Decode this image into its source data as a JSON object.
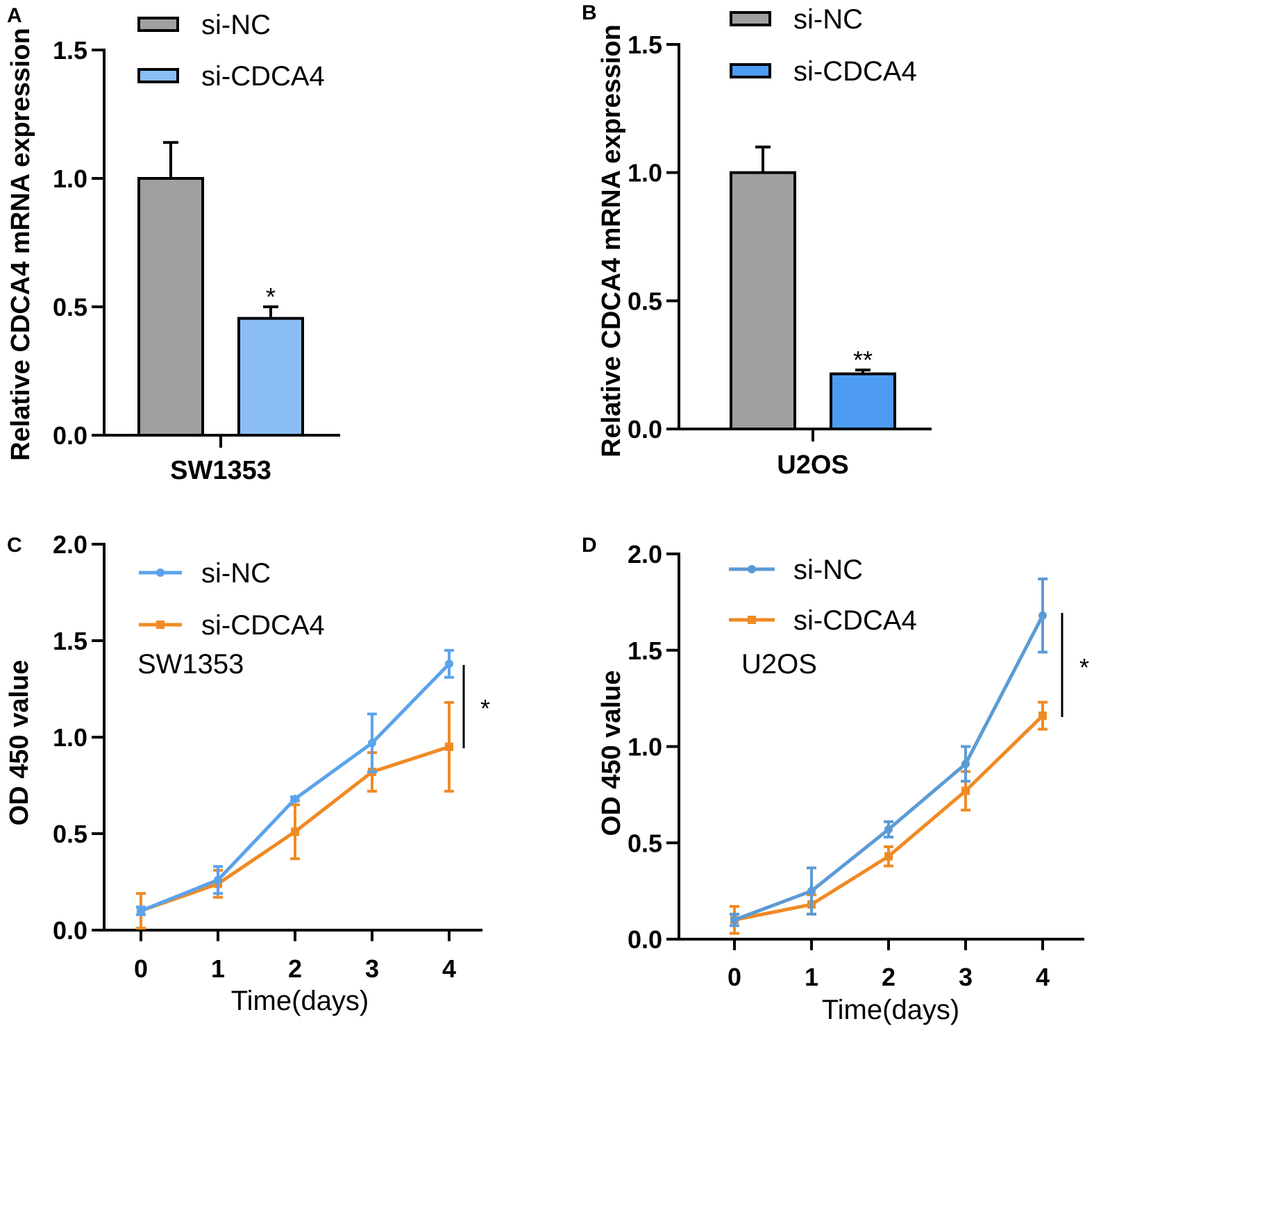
{
  "chart_data": [
    {
      "panel": "A",
      "type": "bar",
      "categories": [
        "SW1353"
      ],
      "series": [
        {
          "name": "si-NC",
          "color": "#a0a0a0",
          "values": [
            1.0
          ],
          "error": [
            0.14
          ]
        },
        {
          "name": "si-CDCA4",
          "color": "#8bbdf5",
          "values": [
            0.455
          ],
          "error": [
            0.045
          ]
        }
      ],
      "significance": [
        "*"
      ],
      "ylabel": "Relative CDCA4 mRNA expression",
      "xlabel": "SW1353",
      "ylim": [
        0,
        1.5
      ],
      "yticks": [
        "0.0",
        "0.5",
        "1.0",
        "1.5"
      ],
      "legend": {
        "placement": "top",
        "entries": [
          "si-NC",
          "si-CDCA4"
        ]
      }
    },
    {
      "panel": "B",
      "type": "bar",
      "categories": [
        "U2OS"
      ],
      "series": [
        {
          "name": "si-NC",
          "color": "#a0a0a0",
          "values": [
            1.0
          ],
          "error": [
            0.1
          ]
        },
        {
          "name": "si-CDCA4",
          "color": "#4d9cf2",
          "values": [
            0.215
          ],
          "error": [
            0.015
          ]
        }
      ],
      "significance": [
        "**"
      ],
      "ylabel": "Relative CDCA4 mRNA expression",
      "xlabel": "U2OS",
      "ylim": [
        0,
        1.5
      ],
      "yticks": [
        "0.0",
        "0.5",
        "1.0",
        "1.5"
      ],
      "legend": {
        "placement": "top",
        "entries": [
          "si-NC",
          "si-CDCA4"
        ]
      }
    },
    {
      "panel": "C",
      "type": "line",
      "x": [
        0,
        1,
        2,
        3,
        4
      ],
      "xticks": [
        "0",
        "1",
        "2",
        "3",
        "4"
      ],
      "series": [
        {
          "name": "si-NC",
          "color": "#5ba3ec",
          "marker": "circle",
          "values": [
            0.1,
            0.26,
            0.68,
            0.97,
            1.38
          ],
          "error": [
            0.02,
            0.07,
            0.01,
            0.15,
            0.07
          ]
        },
        {
          "name": "si-CDCA4",
          "color": "#f08a24",
          "marker": "square",
          "values": [
            0.1,
            0.24,
            0.51,
            0.82,
            0.95
          ],
          "error": [
            0.09,
            0.07,
            0.14,
            0.1,
            0.23
          ]
        }
      ],
      "cell_line": "SW1353",
      "significance": "*",
      "ylabel": "OD 450 value",
      "xlabel": "Time(days)",
      "ylim": [
        0,
        2.0
      ],
      "yticks": [
        "0.0",
        "0.5",
        "1.0",
        "1.5",
        "2.0"
      ],
      "legend": {
        "placement": "top-left",
        "entries": [
          "si-NC",
          "si-CDCA4"
        ]
      }
    },
    {
      "panel": "D",
      "type": "line",
      "x": [
        0,
        1,
        2,
        3,
        4
      ],
      "xticks": [
        "0",
        "1",
        "2",
        "3",
        "4"
      ],
      "series": [
        {
          "name": "si-NC",
          "color": "#5b9bd5",
          "marker": "circle",
          "values": [
            0.1,
            0.25,
            0.57,
            0.91,
            1.68
          ],
          "error": [
            0.03,
            0.12,
            0.04,
            0.09,
            0.19
          ]
        },
        {
          "name": "si-CDCA4",
          "color": "#f08a24",
          "marker": "square",
          "values": [
            0.1,
            0.18,
            0.43,
            0.77,
            1.16
          ],
          "error": [
            0.07,
            0.05,
            0.05,
            0.1,
            0.07
          ]
        }
      ],
      "cell_line": "U2OS",
      "significance": "*",
      "ylabel": "OD 450 value",
      "xlabel": "Time(days)",
      "ylim": [
        0,
        2.0
      ],
      "yticks": [
        "0.0",
        "0.5",
        "1.0",
        "1.5",
        "2.0"
      ],
      "legend": {
        "placement": "top-left",
        "entries": [
          "si-NC",
          "si-CDCA4"
        ]
      }
    }
  ]
}
